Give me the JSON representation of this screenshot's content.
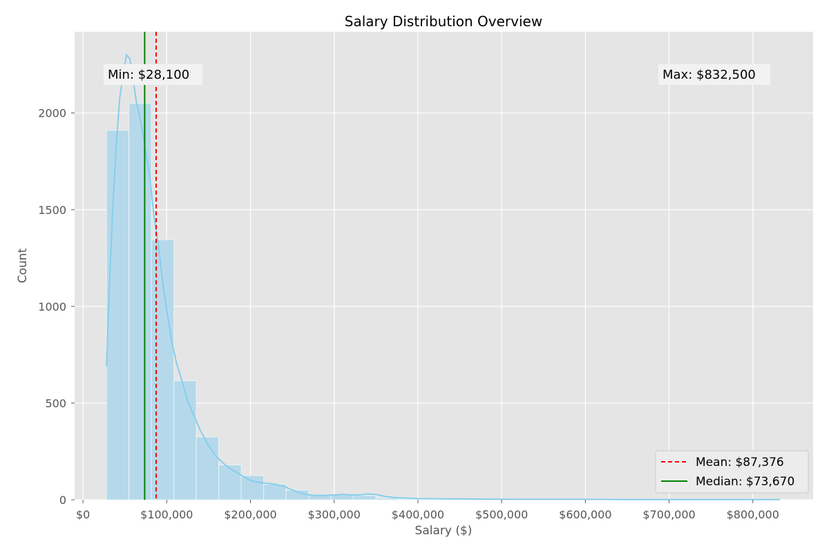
{
  "chart_data": {
    "type": "bar",
    "title": "Salary Distribution Overview",
    "xlabel": "Salary ($)",
    "ylabel": "Count",
    "xlim": [
      -10000,
      872000
    ],
    "ylim": [
      0,
      2420
    ],
    "x_ticks": [
      0,
      100000,
      200000,
      300000,
      400000,
      500000,
      600000,
      700000,
      800000
    ],
    "x_tick_labels": [
      "$0",
      "$100,000",
      "$200,000",
      "$300,000",
      "$400,000",
      "$500,000",
      "$600,000",
      "$700,000",
      "$800,000"
    ],
    "y_ticks": [
      0,
      500,
      1000,
      1500,
      2000
    ],
    "y_tick_labels": [
      "0",
      "500",
      "1000",
      "1500",
      "2000"
    ],
    "grid": true,
    "bins": [
      {
        "start": 28100,
        "end": 54913,
        "count": 1910
      },
      {
        "start": 54913,
        "end": 81727,
        "count": 2050
      },
      {
        "start": 81727,
        "end": 108540,
        "count": 1345
      },
      {
        "start": 108540,
        "end": 135353,
        "count": 615
      },
      {
        "start": 135353,
        "end": 162167,
        "count": 325
      },
      {
        "start": 162167,
        "end": 188980,
        "count": 180
      },
      {
        "start": 188980,
        "end": 215793,
        "count": 125
      },
      {
        "start": 215793,
        "end": 242607,
        "count": 80
      },
      {
        "start": 242607,
        "end": 269420,
        "count": 50
      },
      {
        "start": 269420,
        "end": 296233,
        "count": 22
      },
      {
        "start": 296233,
        "end": 323047,
        "count": 25
      },
      {
        "start": 323047,
        "end": 349860,
        "count": 22
      },
      {
        "start": 349860,
        "end": 376673,
        "count": 8
      },
      {
        "start": 376673,
        "end": 403487,
        "count": 4
      },
      {
        "start": 403487,
        "end": 430300,
        "count": 3
      },
      {
        "start": 430300,
        "end": 457113,
        "count": 3
      },
      {
        "start": 457113,
        "end": 483927,
        "count": 2
      },
      {
        "start": 483927,
        "end": 510740,
        "count": 2
      },
      {
        "start": 510740,
        "end": 537553,
        "count": 1
      },
      {
        "start": 537553,
        "end": 564367,
        "count": 1
      },
      {
        "start": 564367,
        "end": 591180,
        "count": 1
      },
      {
        "start": 591180,
        "end": 617993,
        "count": 1
      },
      {
        "start": 617993,
        "end": 644807,
        "count": 1
      },
      {
        "start": 644807,
        "end": 671620,
        "count": 1
      },
      {
        "start": 671620,
        "end": 698433,
        "count": 1
      },
      {
        "start": 698433,
        "end": 725247,
        "count": 1
      },
      {
        "start": 725247,
        "end": 752060,
        "count": 1
      },
      {
        "start": 752060,
        "end": 778873,
        "count": 1
      },
      {
        "start": 778873,
        "end": 805687,
        "count": 1
      },
      {
        "start": 805687,
        "end": 832500,
        "count": 1
      }
    ],
    "kde": {
      "x": [
        28100,
        32000,
        36000,
        40000,
        44000,
        48000,
        52000,
        56000,
        60000,
        64000,
        68000,
        72000,
        76000,
        80000,
        85000,
        90000,
        95000,
        100000,
        106000,
        112000,
        118000,
        125000,
        132000,
        140000,
        150000,
        160000,
        170000,
        180000,
        190000,
        200000,
        210000,
        220000,
        230000,
        240000,
        250000,
        260000,
        270000,
        280000,
        290000,
        300000,
        310000,
        320000,
        330000,
        340000,
        350000,
        360000,
        370000,
        380000,
        390000,
        400000,
        430000,
        460000,
        500000,
        550000,
        600000,
        650000,
        700000,
        750000,
        800000,
        832500
      ],
      "y": [
        690,
        1150,
        1550,
        1850,
        2080,
        2200,
        2300,
        2280,
        2170,
        2050,
        1980,
        1880,
        1770,
        1660,
        1460,
        1320,
        1130,
        980,
        820,
        700,
        620,
        510,
        440,
        360,
        280,
        220,
        180,
        150,
        125,
        100,
        90,
        85,
        80,
        70,
        50,
        35,
        25,
        22,
        22,
        25,
        28,
        25,
        25,
        30,
        28,
        18,
        12,
        10,
        8,
        6,
        5,
        4,
        3,
        2,
        2,
        1,
        1,
        1,
        1,
        1
      ]
    },
    "reference_lines": [
      {
        "name": "Mean: $87,376",
        "value": 87376,
        "color": "#ff0000",
        "dash": true
      },
      {
        "name": "Median: $73,670",
        "value": 73670,
        "color": "#008000",
        "dash": false
      }
    ],
    "annotations": [
      {
        "text": "Min: $28,100",
        "position": "top-left"
      },
      {
        "text": "Max: $832,500",
        "position": "top-right"
      }
    ],
    "legend_position": "bottom-right",
    "colors": {
      "bar_fill": "#b5d9ea",
      "bar_edge": "#e8f3f8",
      "kde_line": "#87ceeb",
      "plot_background": "#e5e5e5",
      "grid": "#ffffff",
      "tick_text": "#555555"
    }
  }
}
